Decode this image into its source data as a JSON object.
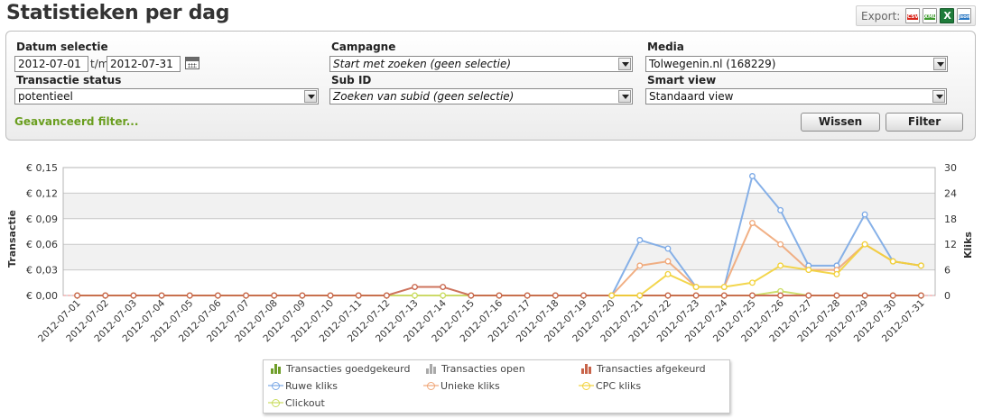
{
  "page": {
    "title": "Statistieken per dag"
  },
  "export": {
    "label": "Export:",
    "icons": [
      "csv-icon",
      "xml-icon",
      "xls-icon",
      "json-icon"
    ],
    "csv": "CSV",
    "xml": "XML",
    "json": "Json"
  },
  "filters": {
    "datum_label": "Datum selectie",
    "date_from": "2012-07-01",
    "date_sep": "t/m",
    "date_to": "2012-07-31",
    "campagne_label": "Campagne",
    "campagne_value": "Start met zoeken (geen selectie)",
    "media_label": "Media",
    "media_value": "Tolwegenin.nl (168229)",
    "transactie_label": "Transactie status",
    "transactie_value": "potentieel",
    "subid_label": "Sub ID",
    "subid_value": "Zoeken van subid (geen selectie)",
    "smartview_label": "Smart view",
    "smartview_value": "Standaard view",
    "advanced_link": "Geavanceerd filter...",
    "wissen_label": "Wissen",
    "filter_label": "Filter"
  },
  "chart_data": {
    "type": "line",
    "categories": [
      "2012-07-01",
      "2012-07-02",
      "2012-07-03",
      "2012-07-04",
      "2012-07-05",
      "2012-07-06",
      "2012-07-07",
      "2012-07-08",
      "2012-07-09",
      "2012-07-10",
      "2012-07-11",
      "2012-07-12",
      "2012-07-13",
      "2012-07-14",
      "2012-07-15",
      "2012-07-16",
      "2012-07-17",
      "2012-07-18",
      "2012-07-19",
      "2012-07-20",
      "2012-07-21",
      "2012-07-22",
      "2012-07-23",
      "2012-07-24",
      "2012-07-25",
      "2012-07-26",
      "2012-07-27",
      "2012-07-28",
      "2012-07-29",
      "2012-07-30",
      "2012-07-31"
    ],
    "y_left_label": "Transactie",
    "y_left_ticks": [
      "€ 0,00",
      "€ 0,03",
      "€ 0,06",
      "€ 0,09",
      "€ 0,12",
      "€ 0,15"
    ],
    "y_left_range": [
      0,
      0.15
    ],
    "y_right_label": "Kliks",
    "y_right_ticks": [
      "0",
      "6",
      "12",
      "18",
      "24",
      "30"
    ],
    "y_right_range": [
      0,
      30
    ],
    "series": [
      {
        "name": "Transacties goedgekeurd",
        "kind": "bar",
        "axis": "left",
        "color": "#6f9e2a",
        "values": [
          0,
          0,
          0,
          0,
          0,
          0,
          0,
          0,
          0,
          0,
          0,
          0,
          0,
          0,
          0,
          0,
          0,
          0,
          0,
          0,
          0,
          0,
          0,
          0,
          0,
          0,
          0,
          0,
          0,
          0,
          0
        ]
      },
      {
        "name": "Transacties open",
        "kind": "bar",
        "axis": "left",
        "color": "#a9a9a9",
        "values": [
          0,
          0,
          0,
          0,
          0,
          0,
          0,
          0,
          0,
          0,
          0,
          0,
          0,
          0,
          0,
          0,
          0,
          0,
          0,
          0,
          0,
          0,
          0,
          0,
          0,
          0,
          0,
          0,
          0,
          0,
          0
        ]
      },
      {
        "name": "Transacties afgekeurd",
        "kind": "line",
        "axis": "left",
        "color": "#c8644a",
        "values": [
          0,
          0,
          0,
          0,
          0,
          0,
          0,
          0,
          0,
          0,
          0,
          0,
          0.01,
          0.01,
          0,
          0,
          0,
          0,
          0,
          0,
          0,
          0,
          0,
          0,
          0,
          0,
          0,
          0,
          0,
          0,
          0
        ]
      },
      {
        "name": "Ruwe kliks",
        "kind": "line",
        "axis": "right",
        "color": "#7aa8e6",
        "values": [
          null,
          null,
          null,
          null,
          null,
          null,
          null,
          null,
          null,
          null,
          null,
          null,
          null,
          null,
          null,
          null,
          null,
          null,
          null,
          0,
          13,
          11,
          2,
          2,
          28,
          20,
          7,
          7,
          19,
          8,
          7
        ]
      },
      {
        "name": "Unieke kliks",
        "kind": "line",
        "axis": "right",
        "color": "#f0a778",
        "values": [
          null,
          null,
          null,
          null,
          null,
          null,
          null,
          null,
          null,
          null,
          null,
          null,
          null,
          null,
          null,
          null,
          null,
          null,
          null,
          0,
          7,
          8,
          2,
          2,
          17,
          12,
          6,
          6,
          12,
          8,
          7
        ]
      },
      {
        "name": "CPC kliks",
        "kind": "line",
        "axis": "right",
        "color": "#f2d23a",
        "values": [
          null,
          null,
          null,
          null,
          null,
          null,
          null,
          null,
          null,
          null,
          null,
          null,
          null,
          null,
          null,
          null,
          null,
          null,
          null,
          0,
          0,
          5,
          2,
          2,
          3,
          7,
          6,
          5,
          12,
          8,
          7
        ]
      },
      {
        "name": "Clickout",
        "kind": "line",
        "axis": "right",
        "color": "#c9dc5e",
        "values": [
          0,
          0,
          0,
          0,
          0,
          0,
          0,
          0,
          0,
          0,
          0,
          0,
          0,
          0,
          0,
          0,
          0,
          0,
          0,
          0,
          0,
          0,
          0,
          0,
          0,
          1,
          0,
          0,
          0,
          0,
          0
        ]
      }
    ],
    "grid": true,
    "legend_position": "bottom"
  }
}
